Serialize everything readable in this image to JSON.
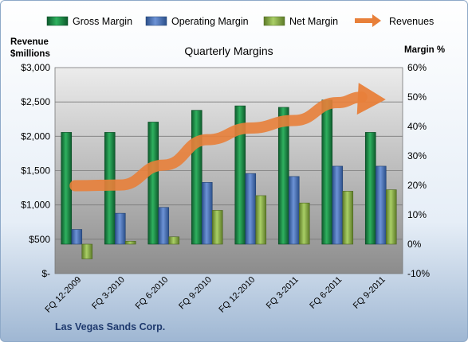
{
  "chart_data": {
    "type": "bar",
    "title": "Quarterly Margins",
    "company": "Las Vegas Sands Corp.",
    "left_axis": {
      "title_line1": "Revenue",
      "title_line2": "$millions",
      "range": [
        0,
        3000
      ],
      "ticks": [
        "$-",
        "$500",
        "$1,000",
        "$1,500",
        "$2,000",
        "$2,500",
        "$3,000"
      ]
    },
    "right_axis": {
      "title": "Margin %",
      "range": [
        -10,
        60
      ],
      "ticks": [
        "-10%",
        "0%",
        "10%",
        "20%",
        "30%",
        "40%",
        "50%",
        "60%"
      ]
    },
    "categories": [
      "FQ 12-2009",
      "FQ 3-2010",
      "FQ 6-2010",
      "FQ 9-2010",
      "FQ 12-2010",
      "FQ 3-2011",
      "FQ 6-2011",
      "FQ 9-2011"
    ],
    "series": [
      {
        "name": "Gross Margin",
        "axis": "right",
        "color": "#1e8a4a",
        "values": [
          38,
          38,
          41.5,
          45.5,
          47,
          46.5,
          49,
          38
        ]
      },
      {
        "name": "Operating Margin",
        "axis": "right",
        "color": "#4a72b8",
        "values": [
          5,
          10.5,
          12.5,
          21,
          24,
          23,
          26.5,
          26.5
        ]
      },
      {
        "name": "Net Margin",
        "axis": "right",
        "color": "#8aae4a",
        "values": [
          -5,
          1,
          2.5,
          11.5,
          16.5,
          14,
          18,
          18.5
        ]
      },
      {
        "name": "Revenues",
        "axis": "left",
        "type": "line",
        "color": "#e8803a",
        "values": [
          1280,
          1290,
          1580,
          1950,
          2120,
          2230,
          2490,
          2570
        ]
      }
    ],
    "grid": true,
    "legend_position": "top"
  }
}
